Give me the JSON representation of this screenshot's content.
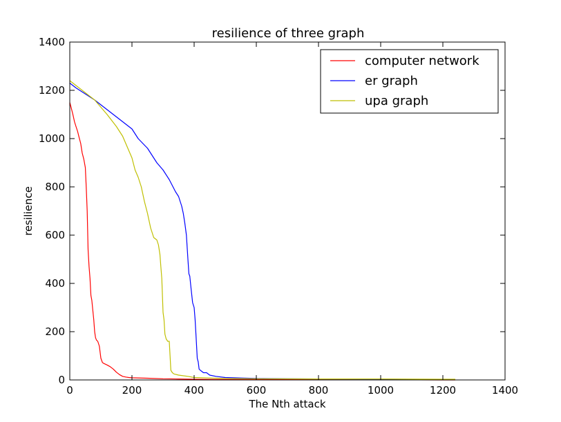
{
  "chart_data": {
    "type": "line",
    "title": "resilience of three graph",
    "xlabel": "The Nth attack",
    "ylabel": "resilience",
    "xlim": [
      0,
      1400
    ],
    "ylim": [
      0,
      1400
    ],
    "xticks": [
      0,
      200,
      400,
      600,
      800,
      1000,
      1200,
      1400
    ],
    "yticks": [
      0,
      200,
      400,
      600,
      800,
      1000,
      1200,
      1400
    ],
    "grid": false,
    "legend_position": "top-right",
    "series": [
      {
        "name": "computer network",
        "color": "#ff0000",
        "x": [
          0,
          5,
          10,
          15,
          20,
          25,
          30,
          35,
          40,
          45,
          50,
          53,
          56,
          59,
          62,
          65,
          68,
          71,
          74,
          77,
          80,
          83,
          86,
          90,
          95,
          100,
          105,
          110,
          120,
          130,
          140,
          150,
          160,
          170,
          180,
          190,
          200,
          250,
          300,
          350,
          400,
          500,
          600,
          800,
          1000,
          1200,
          1240
        ],
        "y": [
          1150,
          1125,
          1100,
          1070,
          1050,
          1030,
          1005,
          980,
          940,
          915,
          880,
          800,
          700,
          540,
          470,
          420,
          350,
          330,
          290,
          250,
          200,
          175,
          165,
          160,
          140,
          90,
          72,
          68,
          62,
          55,
          45,
          32,
          22,
          15,
          12,
          10,
          9,
          7,
          5,
          4,
          3,
          2,
          2,
          1,
          1,
          0,
          0
        ]
      },
      {
        "name": "er graph",
        "color": "#0000ff",
        "x": [
          0,
          20,
          50,
          80,
          100,
          120,
          150,
          180,
          200,
          220,
          250,
          280,
          300,
          320,
          340,
          350,
          360,
          365,
          370,
          375,
          380,
          383,
          386,
          390,
          395,
          400,
          403,
          406,
          410,
          413,
          416,
          420,
          430,
          440,
          450,
          470,
          500,
          550,
          600,
          700,
          800,
          1000,
          1200,
          1240
        ],
        "y": [
          1230,
          1210,
          1185,
          1160,
          1140,
          1120,
          1090,
          1060,
          1040,
          1000,
          960,
          900,
          870,
          830,
          780,
          760,
          720,
          690,
          650,
          600,
          500,
          440,
          430,
          380,
          320,
          300,
          250,
          185,
          90,
          75,
          45,
          40,
          30,
          30,
          20,
          15,
          10,
          8,
          6,
          5,
          4,
          3,
          2,
          2
        ]
      },
      {
        "name": "upa graph",
        "color": "#bfbf00",
        "x": [
          0,
          20,
          50,
          80,
          100,
          120,
          150,
          170,
          190,
          200,
          210,
          220,
          230,
          240,
          250,
          260,
          270,
          280,
          285,
          290,
          293,
          296,
          300,
          303,
          306,
          310,
          315,
          320,
          325,
          330,
          335,
          350,
          380,
          400,
          450,
          500,
          600,
          800,
          1000,
          1200,
          1240
        ],
        "y": [
          1240,
          1220,
          1190,
          1160,
          1130,
          1100,
          1050,
          1010,
          950,
          920,
          870,
          840,
          800,
          740,
          690,
          630,
          590,
          580,
          560,
          520,
          470,
          420,
          280,
          250,
          190,
          170,
          160,
          160,
          40,
          30,
          25,
          20,
          15,
          10,
          8,
          6,
          5,
          4,
          4,
          3,
          3
        ]
      }
    ]
  }
}
